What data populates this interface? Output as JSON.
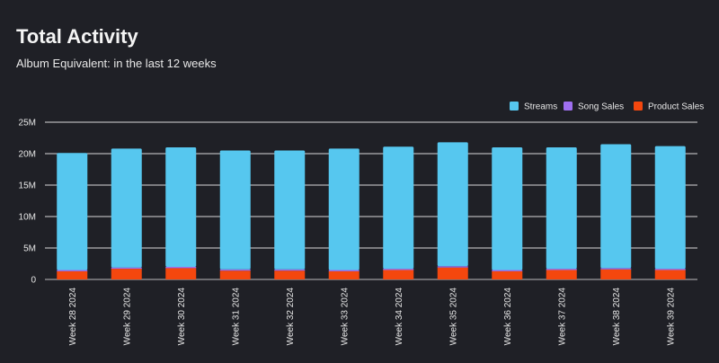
{
  "header": {
    "title": "Total Activity",
    "subtitle": "Album Equivalent: in the last 12 weeks"
  },
  "colors": {
    "background": "#1f2026",
    "grid": "#d9d9d9",
    "streams": "#56c7ef",
    "song_sales": "#9f6ff0",
    "product_sales": "#f4470e"
  },
  "chart_data": {
    "type": "bar",
    "stacked": true,
    "title": "Total Activity",
    "subtitle": "Album Equivalent: in the last 12 weeks",
    "xlabel": "",
    "ylabel": "",
    "ylim": [
      0,
      25000000
    ],
    "yticks": [
      0,
      5000000,
      10000000,
      15000000,
      20000000,
      25000000
    ],
    "ytick_labels": [
      "0",
      "5M",
      "10M",
      "15M",
      "20M",
      "25M"
    ],
    "grid": true,
    "legend_position": "top-right",
    "categories": [
      "Week 28 2024",
      "Week 29 2024",
      "Week 30 2024",
      "Week 31 2024",
      "Week 32 2024",
      "Week 33 2024",
      "Week 34 2024",
      "Week 35 2024",
      "Week 36 2024",
      "Week 37 2024",
      "Week 38 2024",
      "Week 39 2024"
    ],
    "series": [
      {
        "name": "Product Sales",
        "color": "#f4470e",
        "values": [
          1300000,
          1700000,
          1800000,
          1400000,
          1400000,
          1300000,
          1500000,
          1900000,
          1300000,
          1500000,
          1600000,
          1500000
        ]
      },
      {
        "name": "Song Sales",
        "color": "#9f6ff0",
        "values": [
          200000,
          200000,
          200000,
          200000,
          200000,
          200000,
          200000,
          200000,
          200000,
          200000,
          200000,
          200000
        ]
      },
      {
        "name": "Streams",
        "color": "#56c7ef",
        "values": [
          18600000,
          18900000,
          19000000,
          18900000,
          18900000,
          19300000,
          19400000,
          19700000,
          19500000,
          19300000,
          19700000,
          19500000
        ]
      }
    ],
    "legend": [
      "Streams",
      "Song Sales",
      "Product Sales"
    ]
  }
}
